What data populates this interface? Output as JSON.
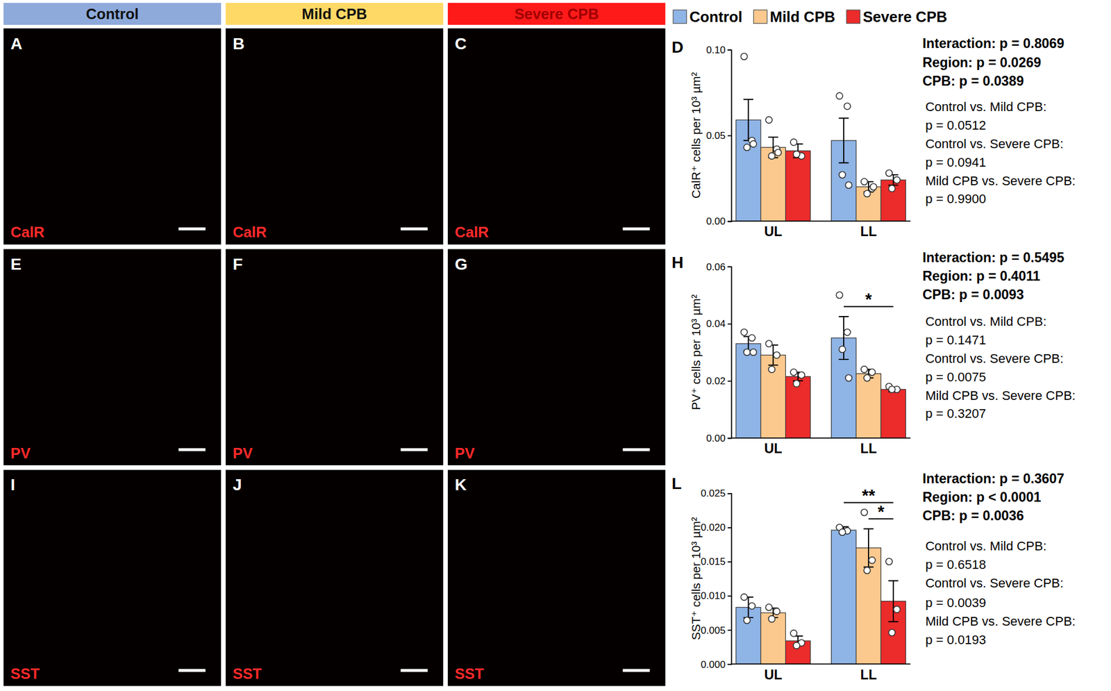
{
  "header": {
    "columns": [
      {
        "label": "Control",
        "color": "#8eaadb",
        "text_color": "#111111"
      },
      {
        "label": "Mild CPB",
        "color": "#ffd966",
        "text_color": "#111111"
      },
      {
        "label": "Severe CPB",
        "color": "#ff1a1a",
        "text_color": "#a00000"
      }
    ]
  },
  "panels": [
    {
      "letter": "A",
      "stain": "CalR"
    },
    {
      "letter": "B",
      "stain": "CalR"
    },
    {
      "letter": "C",
      "stain": "CalR"
    },
    {
      "letter": "E",
      "stain": "PV"
    },
    {
      "letter": "F",
      "stain": "PV"
    },
    {
      "letter": "G",
      "stain": "PV"
    },
    {
      "letter": "I",
      "stain": "SST"
    },
    {
      "letter": "J",
      "stain": "SST"
    },
    {
      "letter": "K",
      "stain": "SST"
    }
  ],
  "chart_data": [
    {
      "type": "bar",
      "title": "D",
      "y_label": "CalR⁺ cells per 10³ µm²",
      "categories": [
        "UL",
        "LL"
      ],
      "legend": "top",
      "ylim": [
        0,
        0.1
      ],
      "yticks": [
        {
          "value": 0,
          "label": "0.00"
        },
        {
          "value": 0.05,
          "label": "0.05"
        },
        {
          "value": 0.1,
          "label": "0.10"
        }
      ],
      "series": [
        {
          "name": "Control",
          "color": "#8fb4e6",
          "values": [
            0.059,
            0.047
          ],
          "errors": [
            0.012,
            0.013
          ],
          "points": [
            [
              0.096,
              0.047,
              0.043,
              0.045
            ],
            [
              0.073,
              0.067,
              0.027,
              0.021
            ]
          ]
        },
        {
          "name": "Mild CPB",
          "color": "#fbc98e",
          "values": [
            0.043,
            0.02
          ],
          "errors": [
            0.006,
            0.003
          ],
          "points": [
            [
              0.059,
              0.042,
              0.038,
              0.04
            ],
            [
              0.023,
              0.019,
              0.016,
              0.02
            ]
          ]
        },
        {
          "name": "Severe CPB",
          "color": "#ec2b2b",
          "values": [
            0.041,
            0.024
          ],
          "errors": [
            0.004,
            0.003
          ],
          "points": [
            [
              0.046,
              0.038,
              0.039
            ],
            [
              0.028,
              0.024,
              0.019
            ]
          ]
        }
      ],
      "significance": [],
      "stats": {
        "main": [
          "Interaction: p = 0.8069",
          "Region: p = 0.0269",
          "CPB: p = 0.0389"
        ],
        "pairs": [
          "Control vs. Mild CPB:",
          "p = 0.0512",
          "Control vs. Severe CPB:",
          "p = 0.0941",
          "Mild CPB vs. Severe CPB:",
          "p = 0.9900"
        ]
      }
    },
    {
      "type": "bar",
      "title": "H",
      "y_label": "PV⁺ cells per 10³ µm²",
      "categories": [
        "UL",
        "LL"
      ],
      "ylim": [
        0,
        0.06
      ],
      "yticks": [
        {
          "value": 0,
          "label": "0.00"
        },
        {
          "value": 0.02,
          "label": "0.02"
        },
        {
          "value": 0.04,
          "label": "0.04"
        },
        {
          "value": 0.06,
          "label": "0.06"
        }
      ],
      "series": [
        {
          "name": "Control",
          "color": "#8fb4e6",
          "values": [
            0.033,
            0.035
          ],
          "errors": [
            0.0025,
            0.0075
          ],
          "points": [
            [
              0.037,
              0.035,
              0.03,
              0.03
            ],
            [
              0.05,
              0.037,
              0.031,
              0.021
            ]
          ]
        },
        {
          "name": "Mild CPB",
          "color": "#fbc98e",
          "values": [
            0.029,
            0.0225
          ],
          "errors": [
            0.0035,
            0.0015
          ],
          "points": [
            [
              0.033,
              0.029,
              0.024
            ],
            [
              0.024,
              0.023,
              0.021
            ]
          ]
        },
        {
          "name": "Severe CPB",
          "color": "#ec2b2b",
          "values": [
            0.0215,
            0.017
          ],
          "errors": [
            0.0015,
            0.0008
          ],
          "points": [
            [
              0.023,
              0.022,
              0.019
            ],
            [
              0.018,
              0.017,
              0.017
            ]
          ]
        }
      ],
      "significance": [
        {
          "category": 1,
          "from": 0,
          "to": 2,
          "label": "*"
        }
      ],
      "stats": {
        "main": [
          "Interaction: p = 0.5495",
          "Region: p = 0.4011",
          "CPB: p = 0.0093"
        ],
        "pairs": [
          "Control vs. Mild CPB:",
          "p = 0.1471",
          "Control vs. Severe CPB:",
          "p = 0.0075",
          "Mild CPB vs. Severe CPB:",
          "p = 0.3207"
        ]
      }
    },
    {
      "type": "bar",
      "title": "L",
      "y_label": "SST⁺ cells per 10³ µm²",
      "categories": [
        "UL",
        "LL"
      ],
      "ylim": [
        0,
        0.025
      ],
      "yticks": [
        {
          "value": 0,
          "label": "0.000"
        },
        {
          "value": 0.005,
          "label": "0.005"
        },
        {
          "value": 0.01,
          "label": "0.010"
        },
        {
          "value": 0.015,
          "label": "0.015"
        },
        {
          "value": 0.02,
          "label": "0.020"
        },
        {
          "value": 0.025,
          "label": "0.025"
        }
      ],
      "series": [
        {
          "name": "Control",
          "color": "#8fb4e6",
          "values": [
            0.0083,
            0.0196
          ],
          "errors": [
            0.0015,
            0.0005
          ],
          "points": [
            [
              0.0098,
              0.0085,
              0.0064
            ],
            [
              0.02,
              0.0195,
              0.0193
            ]
          ]
        },
        {
          "name": "Mild CPB",
          "color": "#fbc98e",
          "values": [
            0.0075,
            0.017
          ],
          "errors": [
            0.0007,
            0.0028
          ],
          "points": [
            [
              0.0083,
              0.0077,
              0.0066
            ],
            [
              0.0222,
              0.0152,
              0.0137
            ]
          ]
        },
        {
          "name": "Severe CPB",
          "color": "#ec2b2b",
          "values": [
            0.0034,
            0.0092
          ],
          "errors": [
            0.0007,
            0.003
          ],
          "points": [
            [
              0.0045,
              0.0031,
              0.0027
            ],
            [
              0.015,
              0.008,
              0.0046
            ]
          ]
        }
      ],
      "significance": [
        {
          "category": 1,
          "from": 0,
          "to": 2,
          "label": "**"
        },
        {
          "category": 1,
          "from": 1,
          "to": 2,
          "label": "*"
        }
      ],
      "stats": {
        "main": [
          "Interaction: p = 0.3607",
          "Region: p < 0.0001",
          "CPB: p = 0.0036"
        ],
        "pairs": [
          "Control vs. Mild CPB:",
          "p = 0.6518",
          "Control vs. Severe CPB:",
          "p = 0.0039",
          "Mild CPB vs. Severe CPB:",
          "p = 0.0193"
        ]
      }
    }
  ]
}
